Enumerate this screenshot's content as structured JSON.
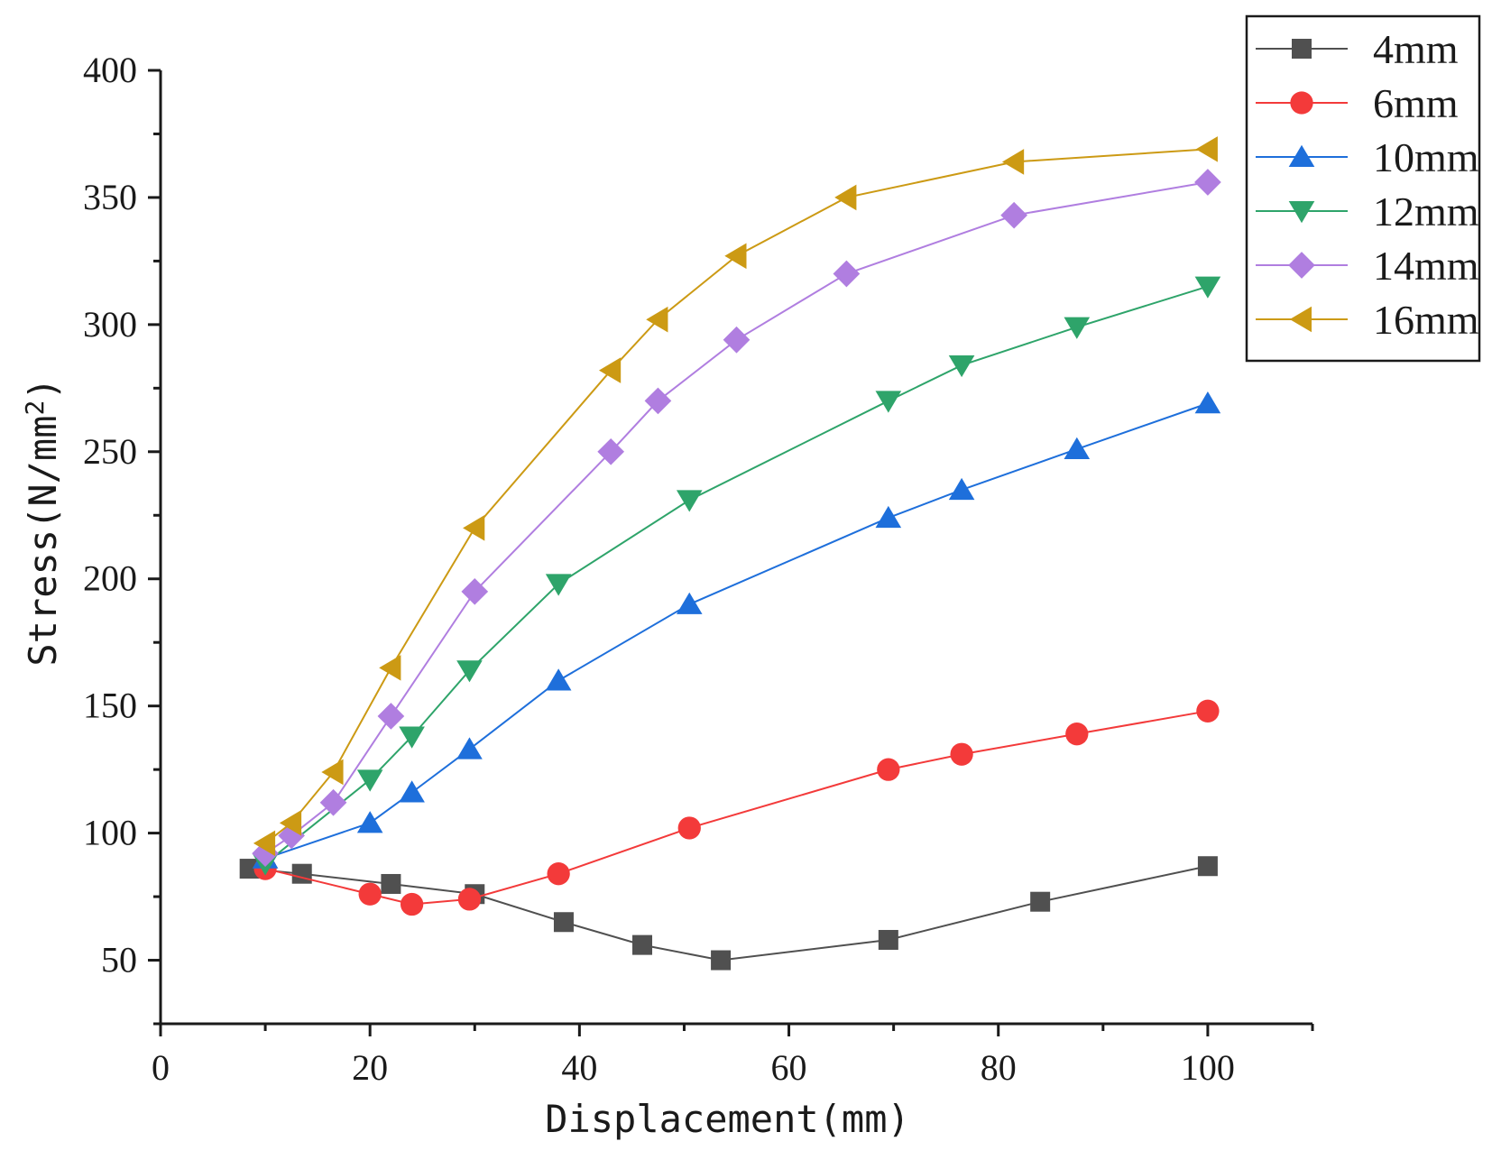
{
  "chart_data": {
    "type": "line",
    "title": "",
    "xlabel": "Displacement(mm)",
    "ylabel_main": "Stress(N/mm",
    "ylabel_sup": "2",
    "ylabel_close": ")",
    "xlim": [
      0,
      110
    ],
    "ylim": [
      25,
      400
    ],
    "xticks": [
      0,
      20,
      40,
      60,
      80,
      100
    ],
    "yticks": [
      50,
      100,
      150,
      200,
      250,
      300,
      350,
      400
    ],
    "legend_position": "top-right",
    "series": [
      {
        "name": "4mm",
        "color": "#505050",
        "marker": "square",
        "x": [
          8.5,
          13.5,
          22,
          30,
          38.5,
          46,
          53.5,
          69.5,
          84,
          100
        ],
        "y": [
          86,
          84,
          80,
          76,
          65,
          56,
          50,
          58,
          73,
          87
        ]
      },
      {
        "name": "6mm",
        "color": "#f33a3a",
        "marker": "circle",
        "x": [
          10,
          20,
          24,
          29.5,
          38,
          50.5,
          69.5,
          76.5,
          87.5,
          100
        ],
        "y": [
          86,
          76,
          72,
          74,
          84,
          102,
          125,
          131,
          139,
          148
        ]
      },
      {
        "name": "10mm",
        "color": "#1e6fdb",
        "marker": "triangle-up",
        "x": [
          10,
          20,
          24,
          29.5,
          38,
          50.5,
          69.5,
          76.5,
          87.5,
          100
        ],
        "y": [
          90,
          104,
          116,
          133,
          160,
          190,
          224,
          235,
          251,
          269
        ]
      },
      {
        "name": "12mm",
        "color": "#2ea46a",
        "marker": "triangle-down",
        "x": [
          10,
          20,
          24,
          29.5,
          38,
          50.5,
          69.5,
          76.5,
          87.5,
          100
        ],
        "y": [
          88,
          121,
          138,
          164,
          198,
          231,
          270,
          284,
          299,
          315
        ]
      },
      {
        "name": "14mm",
        "color": "#b07ee0",
        "marker": "diamond",
        "x": [
          10,
          12.5,
          16.5,
          22,
          30,
          43,
          47.5,
          55,
          65.5,
          81.5,
          100
        ],
        "y": [
          92,
          99,
          112,
          146,
          195,
          250,
          270,
          294,
          320,
          343,
          356
        ]
      },
      {
        "name": "16mm",
        "color": "#cc9a14",
        "marker": "triangle-left",
        "x": [
          10,
          12.5,
          16.5,
          22,
          30,
          43,
          47.5,
          55,
          65.5,
          81.5,
          100
        ],
        "y": [
          96,
          104,
          124,
          165,
          220,
          282,
          302,
          327,
          350,
          364,
          369
        ]
      }
    ]
  }
}
